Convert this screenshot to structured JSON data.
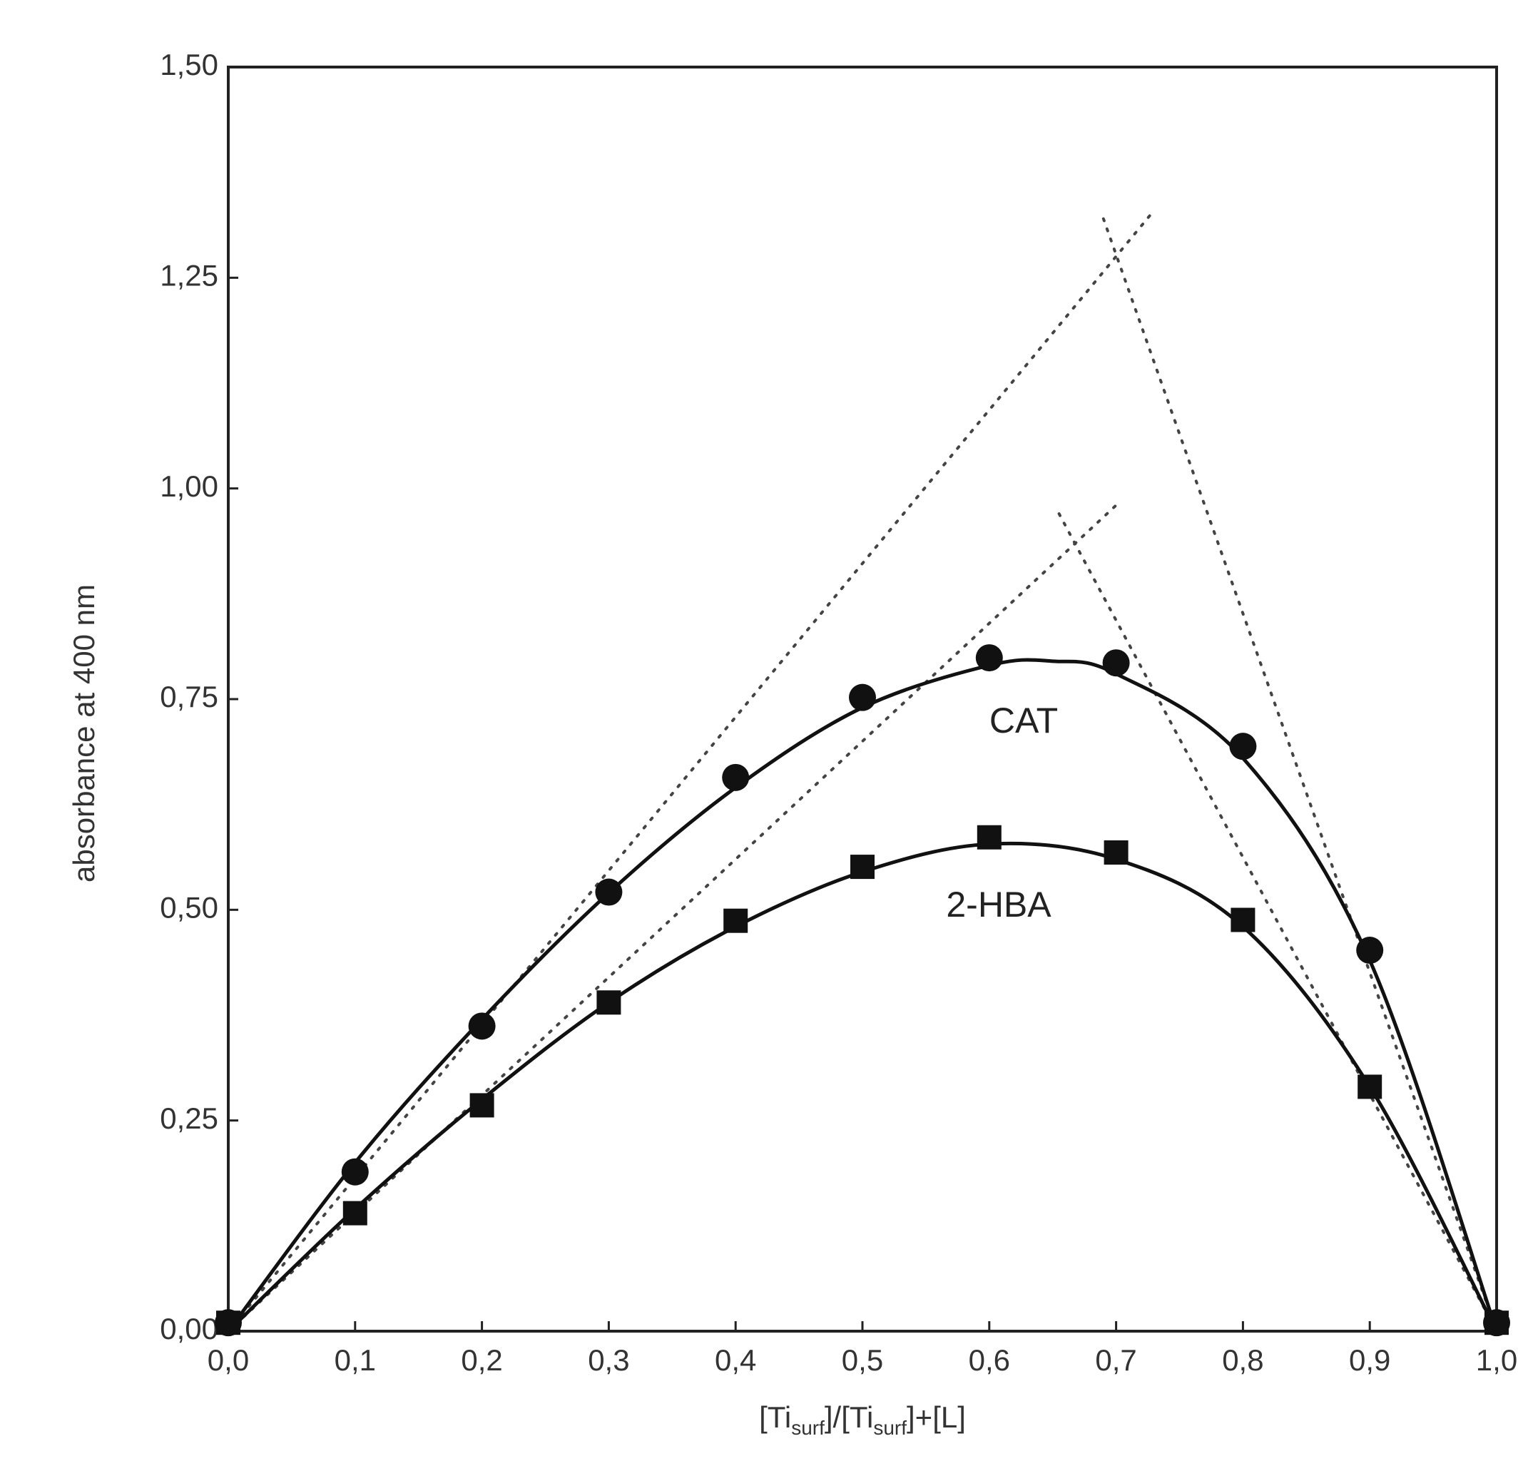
{
  "chart_data": {
    "type": "scatter",
    "x_label": [
      "[Ti",
      "surf",
      "]/[Ti",
      "surf",
      "]+[L]"
    ],
    "y_label": "absorbance at 400 nm",
    "xlim": [
      0,
      1
    ],
    "xticks": [
      {
        "value": 0,
        "label": "0,0"
      },
      {
        "value": 0.1,
        "label": "0,1"
      },
      {
        "value": 0.2,
        "label": "0,2"
      },
      {
        "value": 0.3,
        "label": "0,3"
      },
      {
        "value": 0.4,
        "label": "0,4"
      },
      {
        "value": 0.5,
        "label": "0,5"
      },
      {
        "value": 0.6,
        "label": "0,6"
      },
      {
        "value": 0.7,
        "label": "0,7"
      },
      {
        "value": 0.8,
        "label": "0,8"
      },
      {
        "value": 0.9,
        "label": "0,9"
      },
      {
        "value": 1,
        "label": "1,0"
      }
    ],
    "ylim": [
      0,
      1.5
    ],
    "yticks": [
      {
        "value": 0,
        "label": "0,00"
      },
      {
        "value": 0.25,
        "label": "0,25"
      },
      {
        "value": 0.5,
        "label": "0,50"
      },
      {
        "value": 0.75,
        "label": "0,75"
      },
      {
        "value": 1,
        "label": "1,00"
      },
      {
        "value": 1.25,
        "label": "1,25"
      },
      {
        "value": 1.5,
        "label": "1,50"
      }
    ],
    "x": [
      0,
      0.1,
      0.2,
      0.3,
      0.4,
      0.5,
      0.6,
      0.7,
      0.8,
      0.9,
      1
    ],
    "series": [
      {
        "name": "CAT",
        "marker": "circle",
        "color": "#111111",
        "values": [
          0.01,
          0.189,
          0.362,
          0.521,
          0.657,
          0.752,
          0.799,
          0.793,
          0.694,
          0.452,
          0.01
        ],
        "fit_x": [
          0,
          0.1,
          0.2,
          0.3,
          0.4,
          0.5,
          0.6,
          0.65,
          0.7,
          0.8,
          0.9,
          1
        ],
        "fit_y": [
          0,
          0.2,
          0.37,
          0.52,
          0.645,
          0.74,
          0.79,
          0.795,
          0.78,
          0.68,
          0.44,
          0
        ]
      },
      {
        "name": "2-HBA",
        "marker": "square",
        "color": "#111111",
        "values": [
          0.01,
          0.14,
          0.268,
          0.39,
          0.487,
          0.551,
          0.586,
          0.568,
          0.488,
          0.29,
          0.01
        ],
        "fit_x": [
          0,
          0.1,
          0.2,
          0.3,
          0.4,
          0.5,
          0.6,
          0.7,
          0.8,
          0.9,
          1
        ],
        "fit_y": [
          0,
          0.145,
          0.275,
          0.39,
          0.48,
          0.545,
          0.578,
          0.56,
          0.48,
          0.29,
          0
        ]
      }
    ],
    "guides": [
      {
        "x": [
          0,
          0.73
        ],
        "y": [
          0,
          1.33
        ]
      },
      {
        "x": [
          0.69,
          1
        ],
        "y": [
          1.32,
          0
        ]
      },
      {
        "x": [
          0,
          0.7
        ],
        "y": [
          0,
          0.98
        ]
      },
      {
        "x": [
          0.655,
          1
        ],
        "y": [
          0.97,
          0
        ]
      }
    ]
  }
}
